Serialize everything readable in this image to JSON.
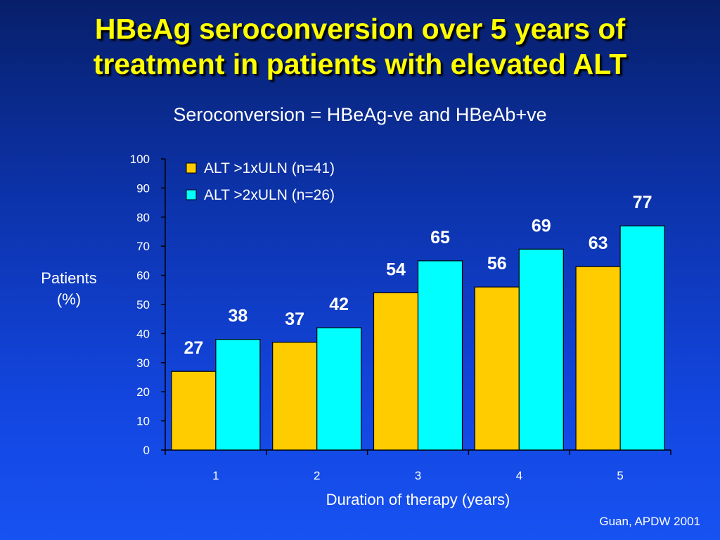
{
  "slide": {
    "title_line1": "HBeAg seroconversion over 5 years of",
    "title_line2": "treatment in patients with elevated ALT",
    "subtitle": "Seroconversion = HBeAg-ve and HBeAb+ve",
    "credit": "Guan, APDW 2001"
  },
  "colors": {
    "title": "#ffff00",
    "text": "#ffffff",
    "series1": "#ffcc00",
    "series2": "#00ffff"
  },
  "chart_data": {
    "type": "bar",
    "categories": [
      "1",
      "2",
      "3",
      "4",
      "5"
    ],
    "series": [
      {
        "name": "ALT >1xULN (n=41)",
        "values": [
          27,
          37,
          54,
          56,
          63
        ]
      },
      {
        "name": "ALT >2xULN (n=26)",
        "values": [
          38,
          42,
          65,
          69,
          77
        ]
      }
    ],
    "ylabel_line1": "Patients",
    "ylabel_line2": "(%)",
    "xlabel": "Duration of therapy (years)",
    "ylim": [
      0,
      100
    ],
    "yticks": [
      0,
      10,
      20,
      30,
      40,
      50,
      60,
      70,
      80,
      90,
      100
    ],
    "grid": false,
    "legend": "top-left",
    "data_labels": true
  }
}
